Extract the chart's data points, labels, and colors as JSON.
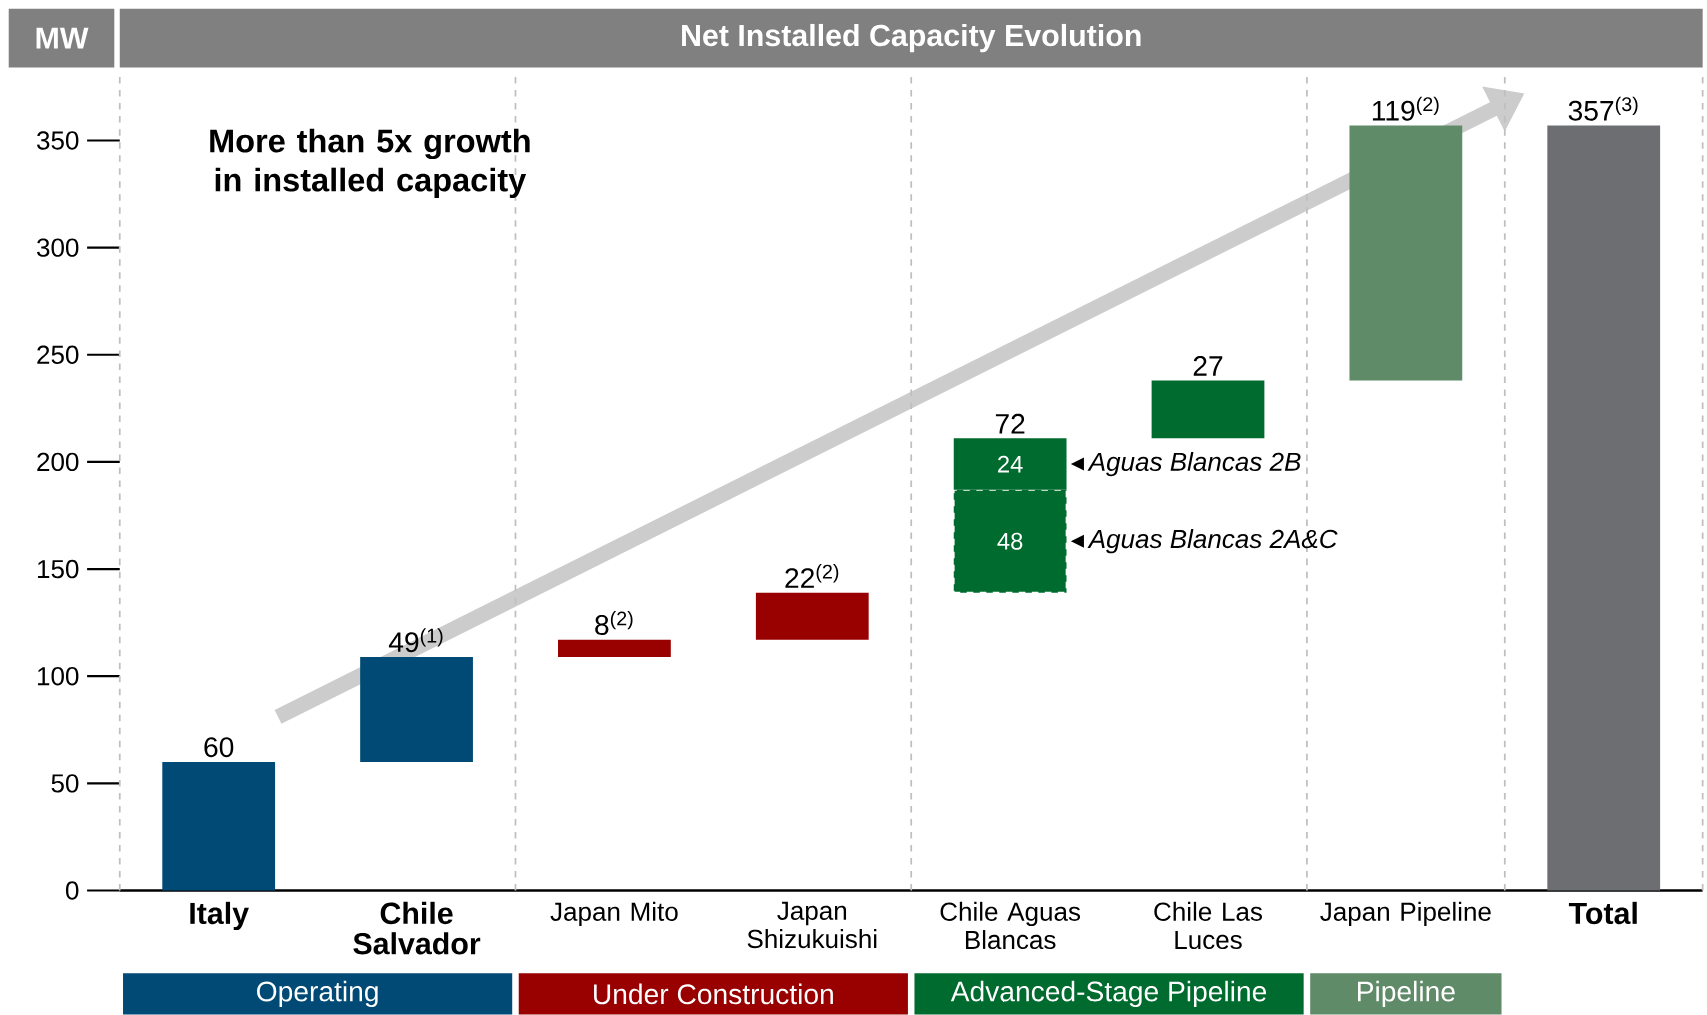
{
  "chart_data": {
    "type": "bar",
    "title": "Net Installed Capacity Evolution",
    "ylabel": "MW",
    "categories": [
      "Italy",
      "Chile Salvador",
      "Japan Mito",
      "Japan Shizukuishi",
      "Chile Aguas Blancas",
      "Chile Las Luces",
      "Japan Pipeline",
      "Total"
    ],
    "series": [
      {
        "base": [
          0,
          60,
          109,
          117,
          139,
          211,
          238,
          0
        ],
        "colors": [
          "#004a75",
          "#004a75",
          "#990000",
          "#990000",
          "#006b2e",
          "#006b2e",
          "#5f8b68",
          "#6d6e71"
        ],
        "values": [
          60,
          49,
          8,
          22,
          48,
          27,
          119,
          357
        ],
        "value_labels": [
          "60",
          "49$^{(1)}$",
          "8$^{(2)}$",
          "22$^{(2)}$",
          "48",
          "27",
          "119$^{(2)}$",
          "357$^{(3)}$"
        ]
      },
      {
        "color": "#006b2e",
        "base": [
          null,
          null,
          null,
          null,
          187,
          null,
          null,
          null
        ],
        "values": [
          null,
          null,
          null,
          null,
          24,
          null,
          null,
          null
        ],
        "value_labels": [
          null,
          null,
          null,
          null,
          "24",
          null,
          null,
          null
        ]
      }
    ],
    "totals": [
      null,
      null,
      null,
      null,
      "72",
      null,
      null,
      null
    ],
    "ylim": [
      0,
      380
    ],
    "yticks": [
      0,
      50,
      100,
      150,
      200,
      250,
      300,
      350
    ],
    "annotations": [
      "More than 5x growth in installed capacity",
      "Aguas Blancas 2B",
      "Aguas Blancas 2A&C",
      "Operating",
      "Under Construction",
      "Advanced-Stage Pipeline",
      "Pipeline"
    ]
  }
}
